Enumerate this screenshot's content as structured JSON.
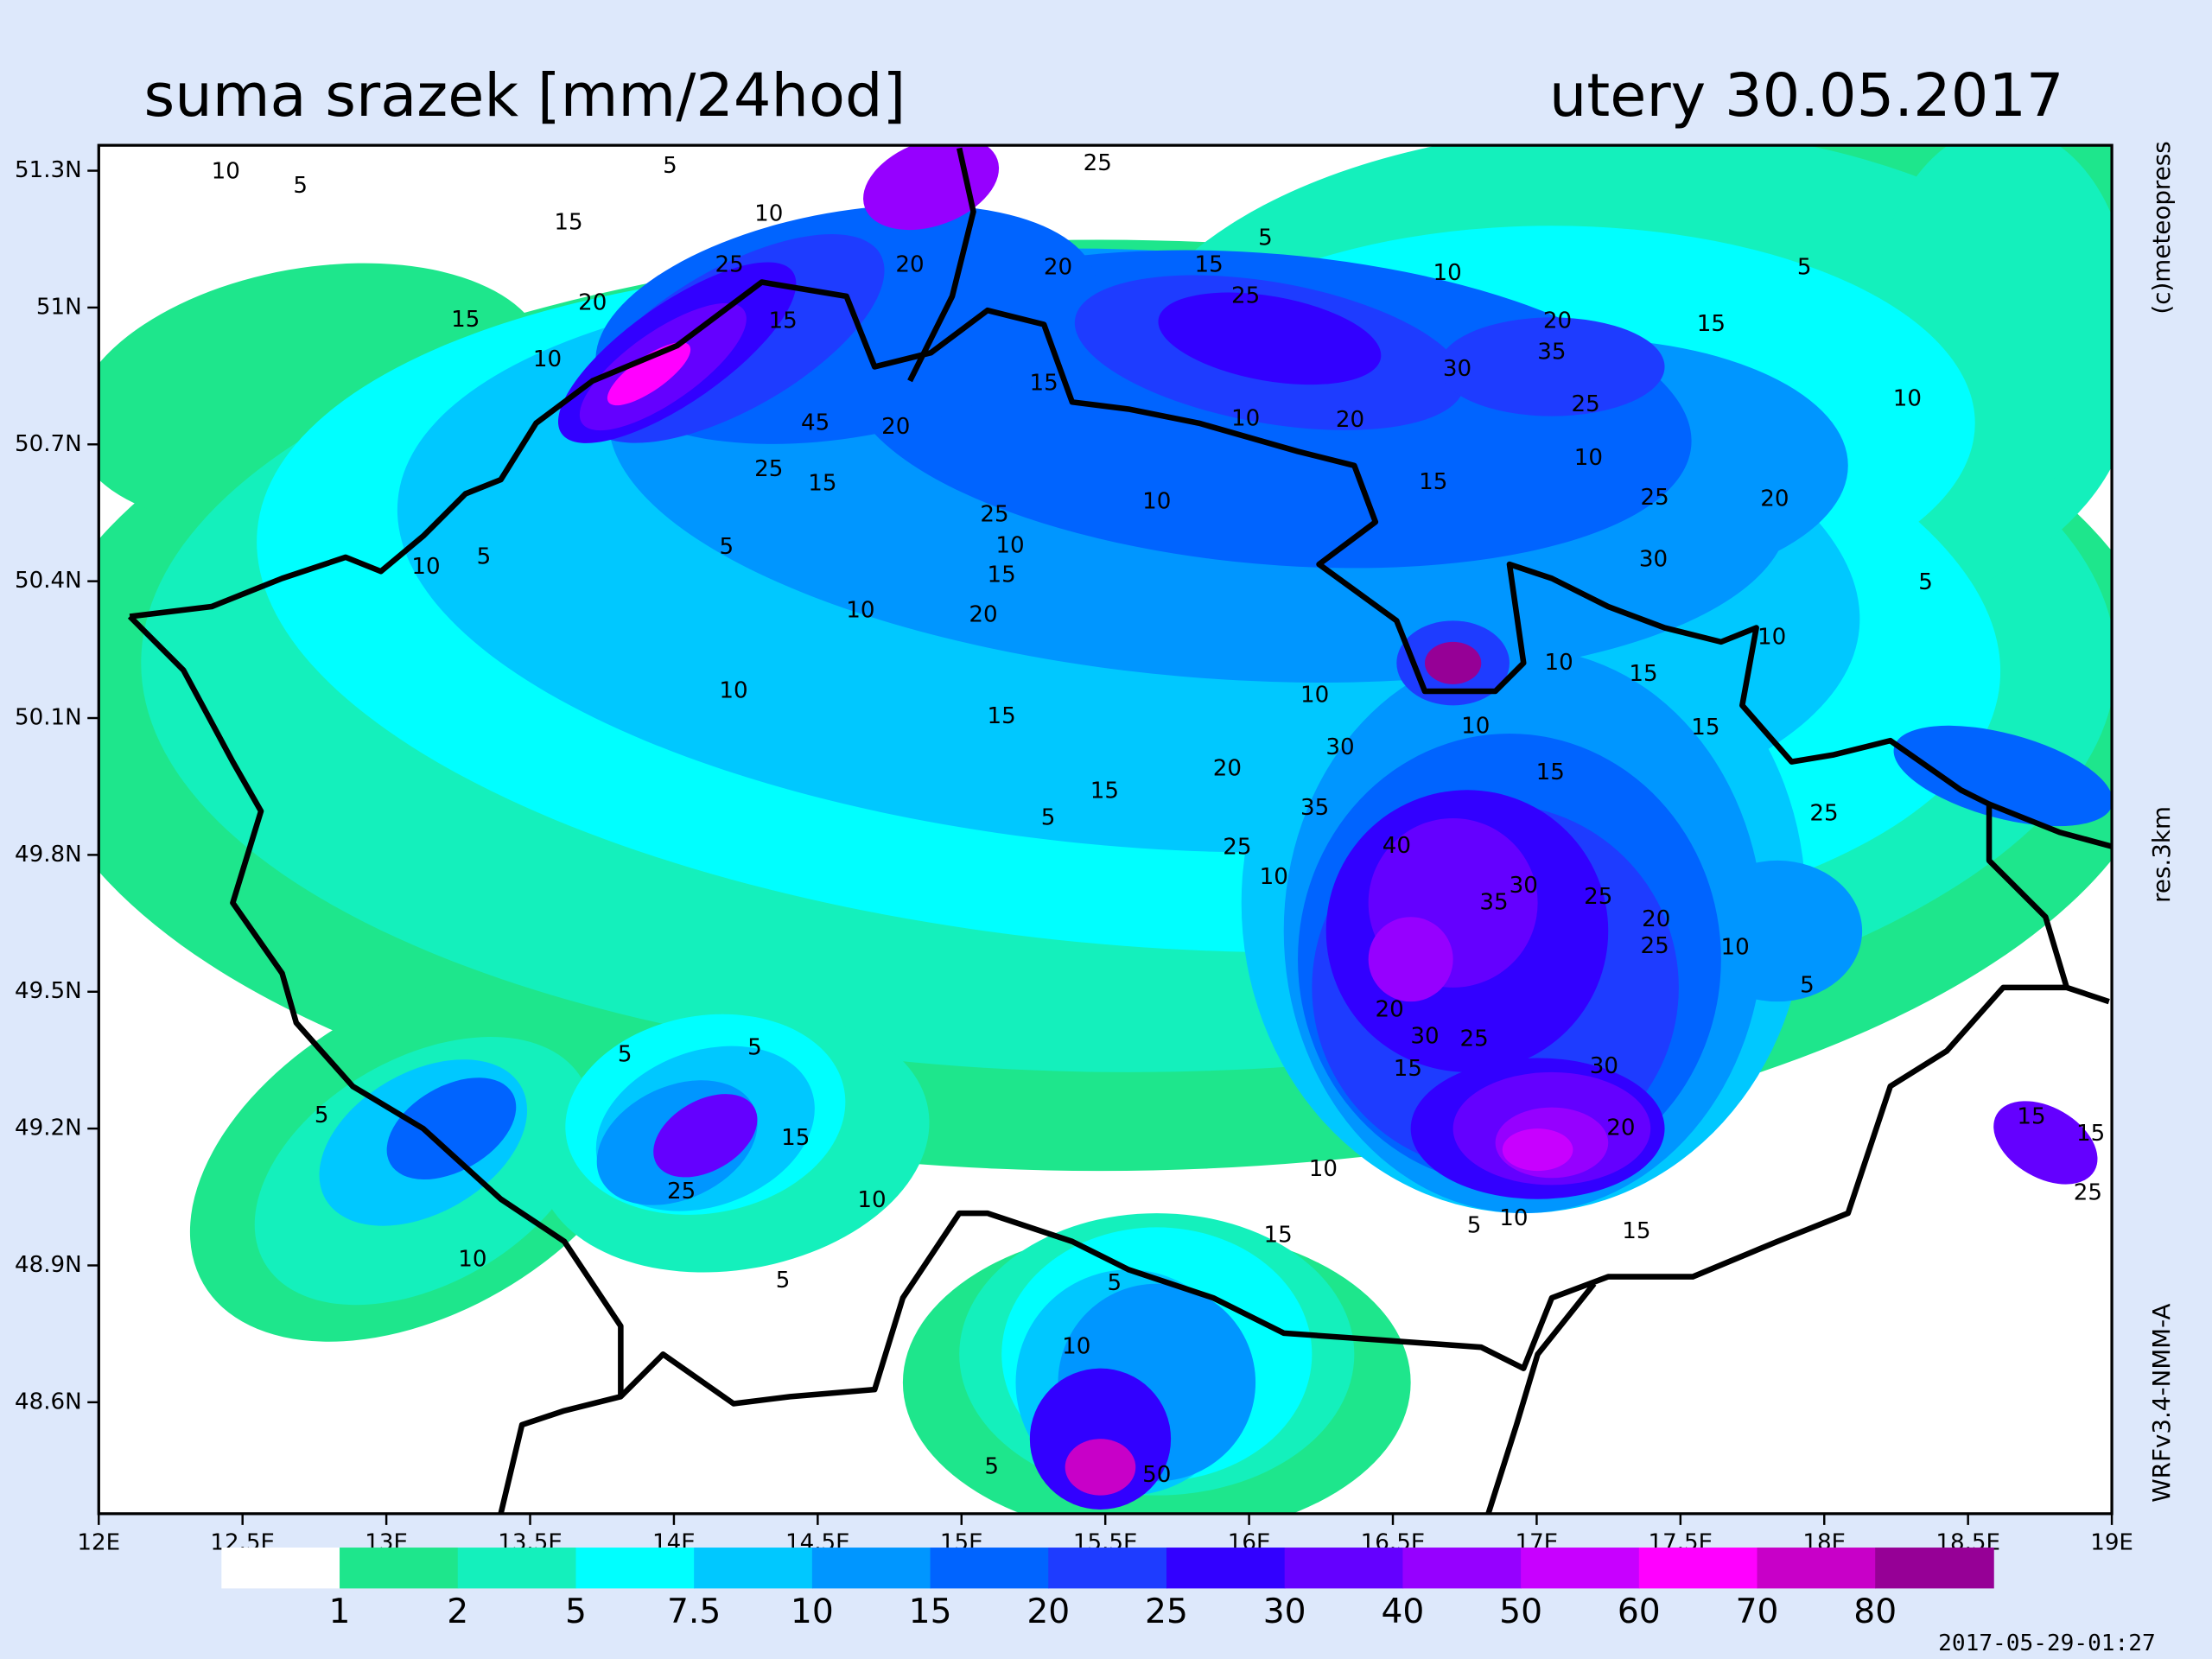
{
  "header": {
    "title": "suma srazek [mm/24hod]",
    "date": "utery 30.05.2017"
  },
  "map": {
    "lat_ticks": [
      "51.3N",
      "51N",
      "50.7N",
      "50.4N",
      "50.1N",
      "49.8N",
      "49.5N",
      "49.2N",
      "48.9N",
      "48.6N"
    ],
    "lon_ticks": [
      "12E",
      "12.5E",
      "13E",
      "13.5E",
      "14E",
      "14.5E",
      "15E",
      "15.5E",
      "16E",
      "16.5E",
      "17E",
      "17.5E",
      "18E",
      "18.5E",
      "19E"
    ],
    "contour_labels": [
      "10",
      "5",
      "5",
      "10",
      "15",
      "25",
      "20",
      "15",
      "10",
      "15",
      "20",
      "20",
      "25",
      "15",
      "5",
      "10",
      "5",
      "15",
      "20",
      "35",
      "30",
      "25",
      "25",
      "20",
      "10",
      "10",
      "45",
      "20",
      "15",
      "25",
      "15",
      "10",
      "15",
      "25",
      "20",
      "10",
      "25",
      "10",
      "15",
      "5",
      "5",
      "10",
      "30",
      "5",
      "10",
      "20",
      "10",
      "10",
      "15",
      "10",
      "10",
      "15",
      "10",
      "15",
      "15",
      "30",
      "20",
      "15",
      "5",
      "35",
      "25",
      "10",
      "40",
      "25",
      "30",
      "25",
      "20",
      "35",
      "10",
      "5",
      "25",
      "20",
      "30",
      "25",
      "15",
      "30",
      "20",
      "5",
      "5",
      "5",
      "15",
      "25",
      "10",
      "10",
      "5",
      "10",
      "15",
      "5",
      "10",
      "15",
      "5",
      "10",
      "5",
      "50",
      "15",
      "15",
      "25"
    ]
  },
  "colorbar": {
    "colors": [
      "#ffffff",
      "#1ee68c",
      "#14f0bc",
      "#00ffff",
      "#00c8ff",
      "#0096ff",
      "#0064ff",
      "#1e3cff",
      "#3200ff",
      "#6400ff",
      "#9600ff",
      "#c800ff",
      "#ff00ff",
      "#c800c8",
      "#960096"
    ],
    "labels": [
      "1",
      "2",
      "5",
      "7.5",
      "10",
      "15",
      "20",
      "25",
      "30",
      "40",
      "50",
      "60",
      "70",
      "80"
    ]
  },
  "side": {
    "copyright": "(c)meteopress",
    "resolution": "res.3km",
    "model": "WRFv3.4-NMM-A"
  },
  "timestamp": "2017-05-29-01:27"
}
